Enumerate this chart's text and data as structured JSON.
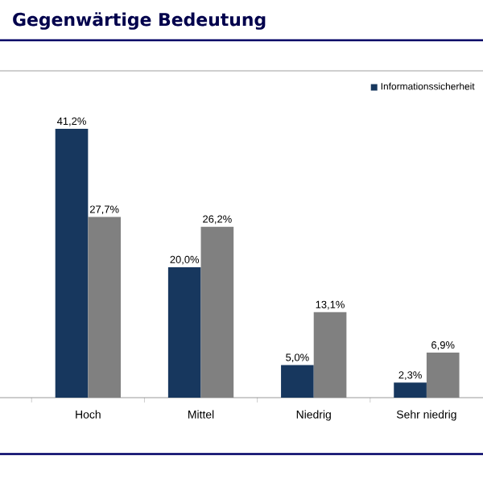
{
  "chart_data": {
    "type": "bar",
    "title": "Gegenwärtige Bedeutung",
    "categories": [
      "Hoch",
      "Mittel",
      "Niedrig",
      "Sehr niedrig"
    ],
    "series": [
      {
        "name": "Informationssicherheit",
        "color": "#17375e",
        "values": [
          41.2,
          20.0,
          5.0,
          2.3
        ],
        "value_labels": [
          "41,2%",
          "20,0%",
          "5,0%",
          "2,3%"
        ]
      },
      {
        "color": "#808080",
        "values": [
          27.7,
          26.2,
          13.1,
          6.9
        ],
        "value_labels": [
          "27,7%",
          "26,2%",
          "13,1%",
          "6,9%"
        ]
      }
    ],
    "legend": "top right"
  }
}
